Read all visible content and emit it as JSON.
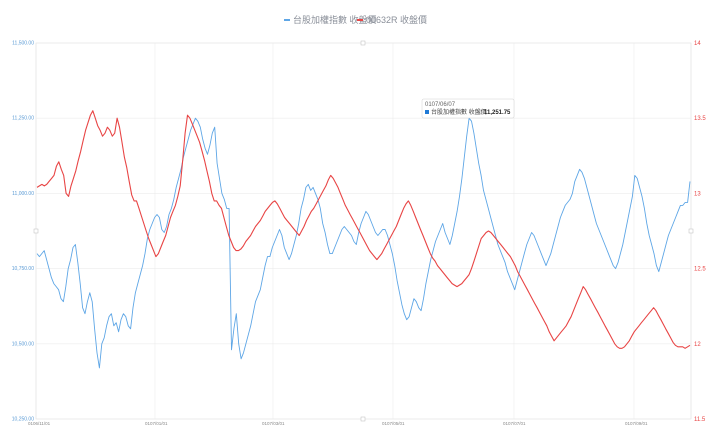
{
  "chart_data": {
    "type": "line",
    "series": [
      {
        "name": "台股加權指數 收盤價",
        "axis": "left",
        "color": "#5ea6e6",
        "values": [
          10800,
          10790,
          10800,
          10810,
          10780,
          10750,
          10720,
          10700,
          10690,
          10680,
          10650,
          10640,
          10690,
          10750,
          10780,
          10820,
          10830,
          10770,
          10700,
          10620,
          10600,
          10640,
          10670,
          10640,
          10550,
          10470,
          10420,
          10500,
          10520,
          10560,
          10590,
          10600,
          10560,
          10570,
          10540,
          10580,
          10600,
          10590,
          10560,
          10550,
          10620,
          10670,
          10700,
          10730,
          10760,
          10800,
          10850,
          10880,
          10900,
          10920,
          10930,
          10920,
          10880,
          10870,
          10890,
          10930,
          10950,
          10980,
          11020,
          11050,
          11080,
          11120,
          11150,
          11180,
          11210,
          11230,
          11250,
          11240,
          11220,
          11180,
          11150,
          11130,
          11160,
          11200,
          11220,
          11100,
          11050,
          11000,
          10980,
          10950,
          10950,
          10480,
          10550,
          10600,
          10500,
          10450,
          10470,
          10500,
          10530,
          10560,
          10600,
          10640,
          10660,
          10680,
          10720,
          10760,
          10790,
          10790,
          10820,
          10840,
          10860,
          10880,
          10860,
          10820,
          10800,
          10780,
          10800,
          10830,
          10860,
          10900,
          10950,
          10980,
          11020,
          11030,
          11010,
          11020,
          11000,
          10980,
          10950,
          10900,
          10870,
          10830,
          10800,
          10800,
          10820,
          10840,
          10860,
          10880,
          10890,
          10880,
          10870,
          10860,
          10840,
          10830,
          10870,
          10900,
          10920,
          10940,
          10930,
          10910,
          10890,
          10870,
          10860,
          10870,
          10880,
          10880,
          10860,
          10830,
          10800,
          10760,
          10710,
          10670,
          10630,
          10600,
          10580,
          10590,
          10620,
          10650,
          10640,
          10620,
          10610,
          10650,
          10700,
          10740,
          10780,
          10810,
          10840,
          10860,
          10880,
          10900,
          10870,
          10850,
          10830,
          10860,
          10900,
          10940,
          10990,
          11050,
          11120,
          11190,
          11250,
          11240,
          11200,
          11150,
          11100,
          11060,
          11010,
          10980,
          10950,
          10920,
          10890,
          10860,
          10830,
          10810,
          10790,
          10770,
          10740,
          10720,
          10700,
          10680,
          10710,
          10740,
          10770,
          10800,
          10830,
          10850,
          10870,
          10860,
          10840,
          10820,
          10800,
          10780,
          10760,
          10780,
          10800,
          10830,
          10860,
          10890,
          10920,
          10940,
          10960,
          10970,
          10980,
          11000,
          11040,
          11060,
          11080,
          11070,
          11050,
          11020,
          10990,
          10960,
          10930,
          10900,
          10880,
          10860,
          10840,
          10820,
          10800,
          10780,
          10760,
          10750,
          10770,
          10800,
          10830,
          10870,
          10910,
          10950,
          10990,
          11060,
          11050,
          11020,
          10990,
          10950,
          10900,
          10860,
          10830,
          10800,
          10760,
          10740,
          10770,
          10800,
          10830,
          10860,
          10880,
          10900,
          10920,
          10940,
          10960,
          10960,
          10970,
          10970,
          11040
        ]
      },
      {
        "name": "00632R 收盤價",
        "axis": "right",
        "color": "#e84545",
        "values": [
          13.04,
          13.05,
          13.06,
          13.05,
          13.06,
          13.08,
          13.1,
          13.12,
          13.18,
          13.21,
          13.16,
          13.12,
          13.0,
          12.98,
          13.05,
          13.1,
          13.15,
          13.22,
          13.28,
          13.35,
          13.42,
          13.47,
          13.52,
          13.55,
          13.5,
          13.45,
          13.42,
          13.38,
          13.4,
          13.44,
          13.42,
          13.38,
          13.4,
          13.5,
          13.44,
          13.34,
          13.24,
          13.17,
          13.08,
          12.99,
          12.95,
          12.95,
          12.9,
          12.85,
          12.8,
          12.75,
          12.7,
          12.66,
          12.62,
          12.58,
          12.6,
          12.64,
          12.68,
          12.72,
          12.78,
          12.84,
          12.88,
          12.92,
          12.98,
          13.05,
          13.22,
          13.4,
          13.52,
          13.5,
          13.46,
          13.42,
          13.38,
          13.34,
          13.28,
          13.22,
          13.15,
          13.08,
          13.0,
          12.95,
          12.95,
          12.92,
          12.9,
          12.84,
          12.78,
          12.72,
          12.68,
          12.64,
          12.62,
          12.62,
          12.63,
          12.65,
          12.68,
          12.7,
          12.72,
          12.75,
          12.78,
          12.8,
          12.82,
          12.85,
          12.88,
          12.9,
          12.92,
          12.94,
          12.95,
          12.93,
          12.9,
          12.87,
          12.84,
          12.82,
          12.8,
          12.78,
          12.76,
          12.74,
          12.72,
          12.75,
          12.78,
          12.82,
          12.85,
          12.88,
          12.9,
          12.93,
          12.96,
          12.99,
          13.02,
          13.05,
          13.09,
          13.12,
          13.1,
          13.07,
          13.04,
          13.0,
          12.96,
          12.92,
          12.89,
          12.86,
          12.83,
          12.8,
          12.77,
          12.74,
          12.71,
          12.68,
          12.65,
          12.62,
          12.6,
          12.58,
          12.56,
          12.58,
          12.6,
          12.63,
          12.66,
          12.69,
          12.72,
          12.75,
          12.78,
          12.82,
          12.86,
          12.9,
          12.93,
          12.95,
          12.92,
          12.88,
          12.84,
          12.8,
          12.76,
          12.72,
          12.68,
          12.64,
          12.6,
          12.57,
          12.55,
          12.52,
          12.5,
          12.48,
          12.46,
          12.44,
          12.42,
          12.4,
          12.39,
          12.38,
          12.39,
          12.4,
          12.42,
          12.44,
          12.46,
          12.5,
          12.55,
          12.6,
          12.65,
          12.7,
          12.72,
          12.74,
          12.75,
          12.74,
          12.72,
          12.7,
          12.68,
          12.66,
          12.64,
          12.62,
          12.6,
          12.58,
          12.55,
          12.52,
          12.48,
          12.45,
          12.42,
          12.39,
          12.36,
          12.33,
          12.3,
          12.27,
          12.24,
          12.21,
          12.18,
          12.15,
          12.12,
          12.08,
          12.05,
          12.02,
          12.04,
          12.06,
          12.08,
          12.1,
          12.12,
          12.15,
          12.18,
          12.22,
          12.26,
          12.3,
          12.34,
          12.38,
          12.36,
          12.33,
          12.3,
          12.27,
          12.24,
          12.21,
          12.18,
          12.15,
          12.12,
          12.09,
          12.06,
          12.03,
          12.0,
          11.98,
          11.97,
          11.97,
          11.98,
          12.0,
          12.02,
          12.05,
          12.08,
          12.1,
          12.12,
          12.14,
          12.16,
          12.18,
          12.2,
          12.22,
          12.24,
          12.22,
          12.19,
          12.16,
          12.13,
          12.1,
          12.07,
          12.04,
          12.01,
          11.99,
          11.98,
          11.98,
          11.98,
          11.97,
          11.98,
          11.99
        ]
      }
    ],
    "y_left": {
      "range": [
        10250,
        11500
      ],
      "ticks": [
        "10,250.00",
        "10,500.00",
        "10,750.00",
        "11,000.00",
        "11,250.00",
        "11,500.00"
      ]
    },
    "y_right": {
      "range": [
        11.5,
        14
      ],
      "ticks": [
        "11.5",
        "12",
        "12.5",
        "13",
        "13.5",
        "14"
      ]
    },
    "x_ticks": [
      "0106/11/01",
      "0107/01/01",
      "0107/03/01",
      "0107/05/01",
      "0107/07/01",
      "0107/09/01"
    ],
    "legend": {
      "position": "top",
      "items": [
        "台股加權指數 收盤價",
        "00632R 收盤價"
      ]
    },
    "grid": true,
    "tooltip": {
      "date": "0107/06/07",
      "series": "台股加權指數 收盤價",
      "value": "11,251.75"
    }
  }
}
